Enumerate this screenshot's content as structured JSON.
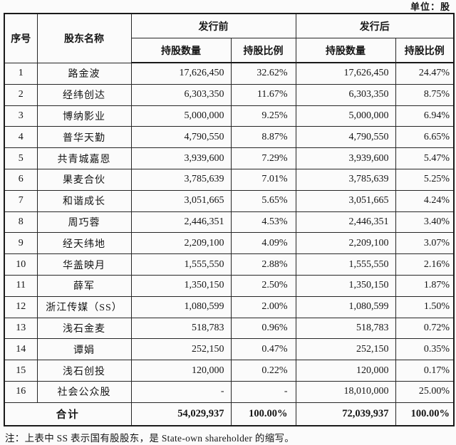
{
  "unit_label": "单位：股",
  "table": {
    "headers": {
      "index": "序号",
      "name": "股东名称",
      "pre_issue": "发行前",
      "post_issue": "发行后",
      "shares": "持股数量",
      "ratio": "持股比例"
    },
    "rows": [
      {
        "no": "1",
        "name": "路金波",
        "pre_shares": "17,626,450",
        "pre_ratio": "32.62%",
        "post_shares": "17,626,450",
        "post_ratio": "24.47%"
      },
      {
        "no": "2",
        "name": "经纬创达",
        "pre_shares": "6,303,350",
        "pre_ratio": "11.67%",
        "post_shares": "6,303,350",
        "post_ratio": "8.75%"
      },
      {
        "no": "3",
        "name": "博纳影业",
        "pre_shares": "5,000,000",
        "pre_ratio": "9.25%",
        "post_shares": "5,000,000",
        "post_ratio": "6.94%"
      },
      {
        "no": "4",
        "name": "普华天勤",
        "pre_shares": "4,790,550",
        "pre_ratio": "8.87%",
        "post_shares": "4,790,550",
        "post_ratio": "6.65%"
      },
      {
        "no": "5",
        "name": "共青城嘉恩",
        "pre_shares": "3,939,600",
        "pre_ratio": "7.29%",
        "post_shares": "3,939,600",
        "post_ratio": "5.47%"
      },
      {
        "no": "6",
        "name": "果麦合伙",
        "pre_shares": "3,785,639",
        "pre_ratio": "7.01%",
        "post_shares": "3,785,639",
        "post_ratio": "5.25%"
      },
      {
        "no": "7",
        "name": "和谐成长",
        "pre_shares": "3,051,665",
        "pre_ratio": "5.65%",
        "post_shares": "3,051,665",
        "post_ratio": "4.24%"
      },
      {
        "no": "8",
        "name": "周巧蓉",
        "pre_shares": "2,446,351",
        "pre_ratio": "4.53%",
        "post_shares": "2,446,351",
        "post_ratio": "3.40%"
      },
      {
        "no": "9",
        "name": "经天纬地",
        "pre_shares": "2,209,100",
        "pre_ratio": "4.09%",
        "post_shares": "2,209,100",
        "post_ratio": "3.07%"
      },
      {
        "no": "10",
        "name": "华盖映月",
        "pre_shares": "1,555,550",
        "pre_ratio": "2.88%",
        "post_shares": "1,555,550",
        "post_ratio": "2.16%"
      },
      {
        "no": "11",
        "name": "薛军",
        "pre_shares": "1,350,150",
        "pre_ratio": "2.50%",
        "post_shares": "1,350,150",
        "post_ratio": "1.87%"
      },
      {
        "no": "12",
        "name": "浙江传媒（SS）",
        "pre_shares": "1,080,599",
        "pre_ratio": "2.00%",
        "post_shares": "1,080,599",
        "post_ratio": "1.50%"
      },
      {
        "no": "13",
        "name": "浅石金麦",
        "pre_shares": "518,783",
        "pre_ratio": "0.96%",
        "post_shares": "518,783",
        "post_ratio": "0.72%"
      },
      {
        "no": "14",
        "name": "谭娟",
        "pre_shares": "252,150",
        "pre_ratio": "0.47%",
        "post_shares": "252,150",
        "post_ratio": "0.35%"
      },
      {
        "no": "15",
        "name": "浅石创投",
        "pre_shares": "120,000",
        "pre_ratio": "0.22%",
        "post_shares": "120,000",
        "post_ratio": "0.17%"
      },
      {
        "no": "16",
        "name": "社会公众股",
        "pre_shares": "-",
        "pre_ratio": "-",
        "post_shares": "18,010,000",
        "post_ratio": "25.00%"
      }
    ],
    "total": {
      "label": "合计",
      "pre_shares": "54,029,937",
      "pre_ratio": "100.00%",
      "post_shares": "72,039,937",
      "post_ratio": "100.00%"
    }
  },
  "note": "注：上表中 SS 表示国有股股东，是 State-own shareholder 的缩写。"
}
